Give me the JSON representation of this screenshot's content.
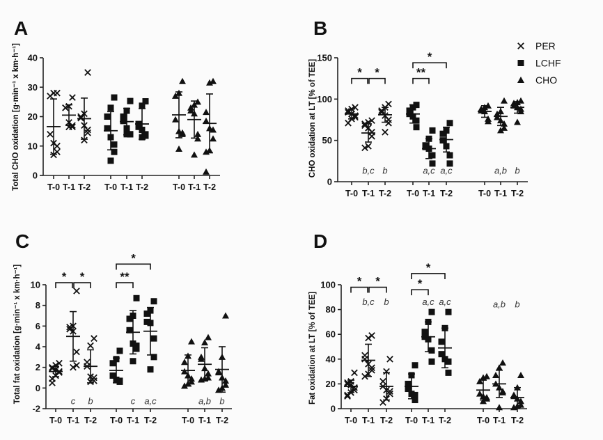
{
  "legend": [
    {
      "name": "PER",
      "marker": "cross"
    },
    {
      "name": "LCHF",
      "marker": "square"
    },
    {
      "name": "CHO",
      "marker": "triangle"
    }
  ],
  "colors": {
    "marks": "#111111",
    "annotation": "#333333"
  },
  "chart_data": [
    {
      "type": "scatter",
      "panel": "A",
      "ylabel": "Total  CHO oxidation [g·min⁻¹ x km·h⁻¹]",
      "ylim": [
        0,
        40
      ],
      "yticks": [
        0,
        10,
        20,
        30,
        40
      ],
      "categories": [
        "T-0",
        "T-1",
        "T-2"
      ],
      "series": [
        {
          "name": "PER",
          "groups": [
            {
              "values": [
                28,
                28,
                27,
                14,
                11,
                10,
                8,
                7
              ],
              "mean": 16.6,
              "sd": 9.4
            },
            {
              "values": [
                26.5,
                23.5,
                23,
                23,
                18,
                17,
                16.5,
                16.5
              ],
              "mean": 20.5,
              "sd": 3.5
            },
            {
              "values": [
                35,
                21,
                20,
                19.5,
                17,
                15.5,
                14.5,
                12
              ],
              "mean": 19.3,
              "sd": 7
            }
          ]
        },
        {
          "name": "LCHF",
          "groups": [
            {
              "values": [
                26.5,
                23,
                20,
                16,
                13,
                10.5,
                8,
                5
              ],
              "mean": 15.2,
              "sd": 6.5
            },
            {
              "values": [
                25.3,
                22,
                20,
                18.5,
                16,
                14,
                14,
                14
              ],
              "mean": 18.3,
              "sd": 4.5
            },
            {
              "values": [
                25.2,
                23.7,
                17.5,
                16.5,
                15.5,
                14,
                13.5,
                13
              ],
              "mean": 17.5,
              "sd": 5.2
            }
          ]
        },
        {
          "name": "CHO",
          "groups": [
            {
              "values": [
                32,
                28,
                27,
                19,
                15,
                14.5,
                14,
                9
              ],
              "mean": 20.6,
              "sd": 7.8
            },
            {
              "values": [
                25,
                24,
                23,
                22,
                21,
                14,
                12.5,
                7
              ],
              "mean": 19,
              "sd": 6.3
            },
            {
              "values": [
                32,
                31.5,
                21.5,
                18.5,
                16,
                15.5,
                12.5,
                8.5,
                8,
                1.2
              ],
              "mean": 17.7,
              "sd": 10
            }
          ]
        }
      ],
      "annotations": [],
      "brackets": []
    },
    {
      "type": "scatter",
      "panel": "B",
      "ylabel": "CHO oxidation at LT [% of TEE]",
      "ylim": [
        0,
        150
      ],
      "yticks": [
        0,
        50,
        100,
        150
      ],
      "categories": [
        "T-0",
        "T-1",
        "T-2"
      ],
      "series": [
        {
          "name": "PER",
          "groups": [
            {
              "values": [
                90,
                88,
                86,
                84,
                82,
                80,
                78,
                76,
                71
              ],
              "mean": 82,
              "sd": 6
            },
            {
              "values": [
                74,
                72,
                70,
                68,
                65,
                60,
                55,
                43,
                41
              ],
              "mean": 59,
              "sd": 11
            },
            {
              "values": [
                94,
                90,
                86,
                84,
                80,
                75,
                71,
                60
              ],
              "mean": 81,
              "sd": 9
            }
          ]
        },
        {
          "name": "LCHF",
          "groups": [
            {
              "values": [
                93,
                90,
                86,
                82,
                79,
                74,
                66
              ],
              "mean": 82,
              "sd": 11
            },
            {
              "values": [
                62,
                52,
                44,
                42,
                40,
                32,
                22
              ],
              "mean": 40,
              "sd": 12
            },
            {
              "values": [
                71,
                62,
                58,
                50,
                43,
                32,
                22
              ],
              "mean": 51,
              "sd": 15
            }
          ]
        },
        {
          "name": "CHO",
          "groups": [
            {
              "values": [
                92,
                90,
                88,
                86,
                85,
                76,
                73
              ],
              "mean": 85,
              "sd": 7
            },
            {
              "values": [
                98,
                85,
                82,
                78,
                74,
                70,
                65,
                62
              ],
              "mean": 79,
              "sd": 11
            },
            {
              "values": [
                98,
                96,
                95,
                92,
                90,
                88,
                85,
                72
              ],
              "mean": 90,
              "sd": 7
            }
          ]
        }
      ],
      "annotations": [
        {
          "series": 0,
          "group": 1,
          "text": "b,c",
          "y": 13
        },
        {
          "series": 0,
          "group": 2,
          "text": "b",
          "y": 13
        },
        {
          "series": 1,
          "group": 1,
          "text": "a,c",
          "y": 13
        },
        {
          "series": 1,
          "group": 2,
          "text": "a,c",
          "y": 13
        },
        {
          "series": 2,
          "group": 1,
          "text": "a,b",
          "y": 13
        },
        {
          "series": 2,
          "group": 2,
          "text": "b",
          "y": 13
        }
      ],
      "brackets": [
        {
          "series": 0,
          "from": 0,
          "to": 1,
          "y": 125,
          "label": "*"
        },
        {
          "series": 0,
          "from": 1,
          "to": 2,
          "y": 125,
          "label": "*"
        },
        {
          "series": 1,
          "from": 0,
          "to": 1,
          "y": 125,
          "label": "**"
        },
        {
          "series": 1,
          "from": 0,
          "to": 2,
          "y": 144,
          "label": "*"
        }
      ]
    },
    {
      "type": "scatter",
      "panel": "C",
      "ylabel": "Total fat oxidation [g·min⁻¹ x km·h⁻¹]",
      "ylim": [
        -2,
        10
      ],
      "yticks": [
        -2,
        0,
        2,
        4,
        6,
        8,
        10
      ],
      "categories": [
        "T-0",
        "T-1",
        "T-2"
      ],
      "series": [
        {
          "name": "PER",
          "groups": [
            {
              "values": [
                2.4,
                2.2,
                2,
                1.9,
                1.8,
                1.6,
                1.5,
                1.2,
                0.9,
                0.5
              ],
              "mean": 1.6,
              "sd": 0.5
            },
            {
              "values": [
                9.4,
                6,
                5.9,
                5.7,
                5.5,
                3.5,
                2.2,
                2
              ],
              "mean": 5,
              "sd": 2.4
            },
            {
              "values": [
                4.8,
                4.1,
                2.5,
                2.1,
                1.1,
                1,
                0.7,
                0.6
              ],
              "mean": 2.1,
              "sd": 1.6
            }
          ]
        },
        {
          "name": "LCHF",
          "groups": [
            {
              "values": [
                3.6,
                2.8,
                2.4,
                1.2,
                0.8,
                0.7,
                0.6
              ],
              "mean": 1.7,
              "sd": 1.2
            },
            {
              "values": [
                8.7,
                7,
                6.7,
                5.6,
                4.3,
                4.1,
                3.8,
                2.6
              ],
              "mean": 5.4,
              "sd": 2.1
            },
            {
              "values": [
                8.4,
                7.5,
                7.2,
                6.4,
                6.3,
                4.8,
                3,
                1.8
              ],
              "mean": 5.5,
              "sd": 2.3
            }
          ]
        },
        {
          "name": "CHO",
          "groups": [
            {
              "values": [
                4.5,
                3.1,
                2.5,
                1.6,
                1.2,
                0.9,
                0.6,
                0.4,
                0.2
              ],
              "mean": 1.7,
              "sd": 1.5
            },
            {
              "values": [
                4.9,
                4.4,
                3,
                2.8,
                1.9,
                1.4,
                1,
                0.9,
                0.8
              ],
              "mean": 2.3,
              "sd": 1.6
            },
            {
              "values": [
                7,
                3,
                1.6,
                1.5,
                1,
                0.7,
                0.3,
                0,
                -0.2
              ],
              "mean": 1.8,
              "sd": 2.2
            }
          ]
        }
      ],
      "annotations": [
        {
          "series": 0,
          "group": 1,
          "text": "c",
          "y": -1.3
        },
        {
          "series": 0,
          "group": 2,
          "text": "b",
          "y": -1.3
        },
        {
          "series": 1,
          "group": 1,
          "text": "c",
          "y": -1.3
        },
        {
          "series": 1,
          "group": 2,
          "text": "a,c",
          "y": -1.3
        },
        {
          "series": 2,
          "group": 1,
          "text": "a,b",
          "y": -1.3
        },
        {
          "series": 2,
          "group": 2,
          "text": "b",
          "y": -1.3
        }
      ],
      "brackets": [
        {
          "series": 0,
          "from": 0,
          "to": 1,
          "y": 10.2,
          "label": "*"
        },
        {
          "series": 0,
          "from": 1,
          "to": 2,
          "y": 10.2,
          "label": "*"
        },
        {
          "series": 1,
          "from": 0,
          "to": 1,
          "y": 10.2,
          "label": "**"
        },
        {
          "series": 1,
          "from": 0,
          "to": 2,
          "y": 12,
          "label": "*"
        }
      ]
    },
    {
      "type": "scatter",
      "panel": "D",
      "ylabel": "Fat oxidation at LT [% of TEE]",
      "ylim": [
        0,
        100
      ],
      "yticks": [
        0,
        20,
        40,
        60,
        80,
        100
      ],
      "categories": [
        "T-0",
        "T-1",
        "T-2"
      ],
      "series": [
        {
          "name": "PER",
          "groups": [
            {
              "values": [
                29,
                22,
                21,
                20,
                19,
                17,
                15,
                13,
                11,
                10
              ],
              "mean": 18,
              "sd": 5
            },
            {
              "values": [
                59,
                57,
                43,
                40,
                36,
                33,
                31,
                28,
                26
              ],
              "mean": 39,
              "sd": 13
            },
            {
              "values": [
                40,
                30,
                22,
                18,
                15,
                14,
                12,
                8,
                5
              ],
              "mean": 18,
              "sd": 11
            }
          ]
        },
        {
          "name": "LCHF",
          "groups": [
            {
              "values": [
                35,
                27,
                20,
                16,
                12,
                11,
                7
              ],
              "mean": 18,
              "sd": 10
            },
            {
              "values": [
                78,
                70,
                62,
                58,
                56,
                47,
                38
              ],
              "mean": 58,
              "sd": 12
            },
            {
              "values": [
                78,
                65,
                54,
                44,
                40,
                38,
                29
              ],
              "mean": 49,
              "sd": 16
            }
          ]
        },
        {
          "name": "CHO",
          "groups": [
            {
              "values": [
                26,
                25,
                22,
                12,
                10,
                9,
                8,
                6
              ],
              "mean": 15,
              "sd": 8
            },
            {
              "values": [
                37,
                33,
                27,
                20,
                17,
                14,
                13,
                1
              ],
              "mean": 20,
              "sd": 11
            },
            {
              "values": [
                27,
                17,
                11,
                10,
                8,
                6,
                3,
                2,
                1
              ],
              "mean": 9,
              "sd": 8
            }
          ]
        }
      ],
      "annotations": [
        {
          "series": 0,
          "group": 1,
          "text": "b,c",
          "y": 86
        },
        {
          "series": 0,
          "group": 2,
          "text": "b",
          "y": 86
        },
        {
          "series": 1,
          "group": 1,
          "text": "a,c",
          "y": 86
        },
        {
          "series": 1,
          "group": 2,
          "text": "a,c",
          "y": 86
        },
        {
          "series": 2,
          "group": 1,
          "text": "a,b",
          "y": 84
        },
        {
          "series": 2,
          "group": 2,
          "text": "b",
          "y": 84
        }
      ],
      "brackets": [
        {
          "series": 0,
          "from": 0,
          "to": 1,
          "y": 98,
          "label": "*"
        },
        {
          "series": 0,
          "from": 1,
          "to": 2,
          "y": 98,
          "label": "*"
        },
        {
          "series": 1,
          "from": 0,
          "to": 1,
          "y": 96,
          "label": "*"
        },
        {
          "series": 1,
          "from": 0,
          "to": 2,
          "y": 109,
          "label": "*"
        }
      ]
    }
  ]
}
